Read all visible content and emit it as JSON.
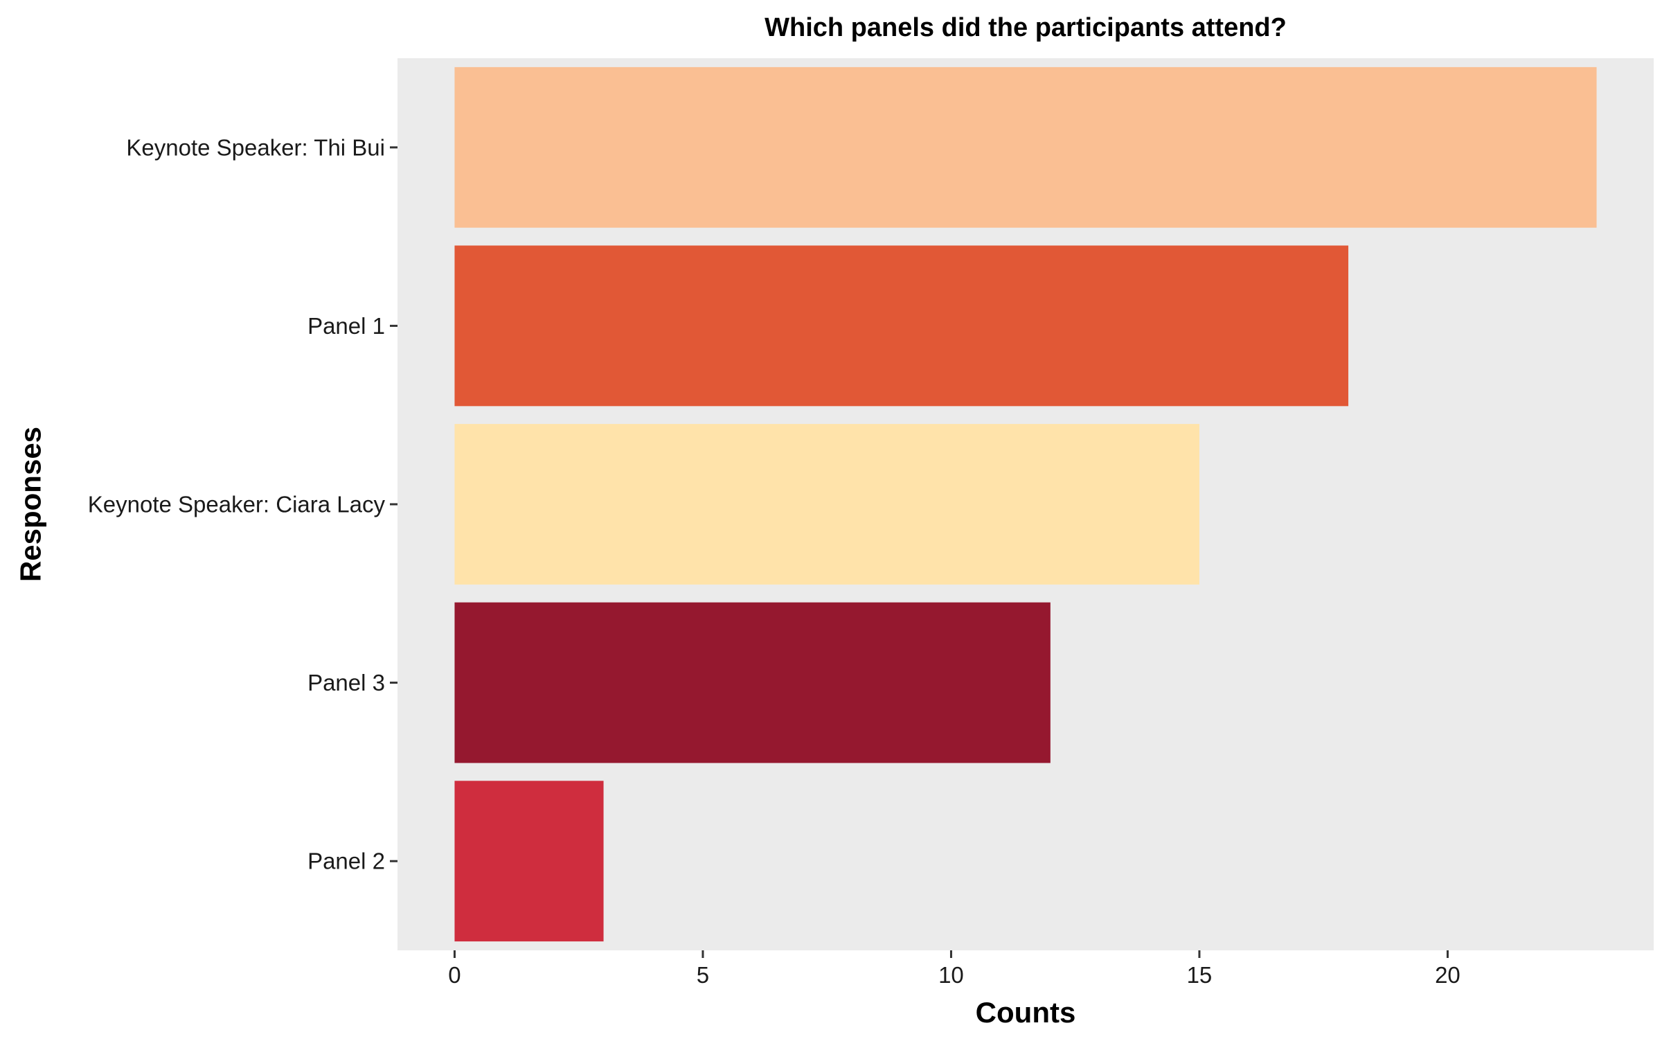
{
  "chart_data": {
    "type": "bar",
    "orientation": "horizontal",
    "title": "Which panels did the participants attend?",
    "xlabel": "Counts",
    "ylabel": "Responses",
    "categories": [
      "Keynote Speaker: Thi Bui",
      "Panel 1",
      "Keynote Speaker: Ciara Lacy",
      "Panel 3",
      "Panel 2"
    ],
    "values": [
      23,
      18,
      15,
      12,
      3
    ],
    "colors": [
      "#FABF93",
      "#E15836",
      "#FFE3AA",
      "#95182F",
      "#CF2D3E"
    ],
    "xlim": [
      -1.15,
      24.15
    ],
    "xticks": [
      0,
      5,
      10,
      15,
      20
    ],
    "xtick_labels": [
      "0",
      "5",
      "10",
      "15",
      "20"
    ],
    "grid": false,
    "panel_background": "#EBEBEB",
    "legend": "none"
  }
}
